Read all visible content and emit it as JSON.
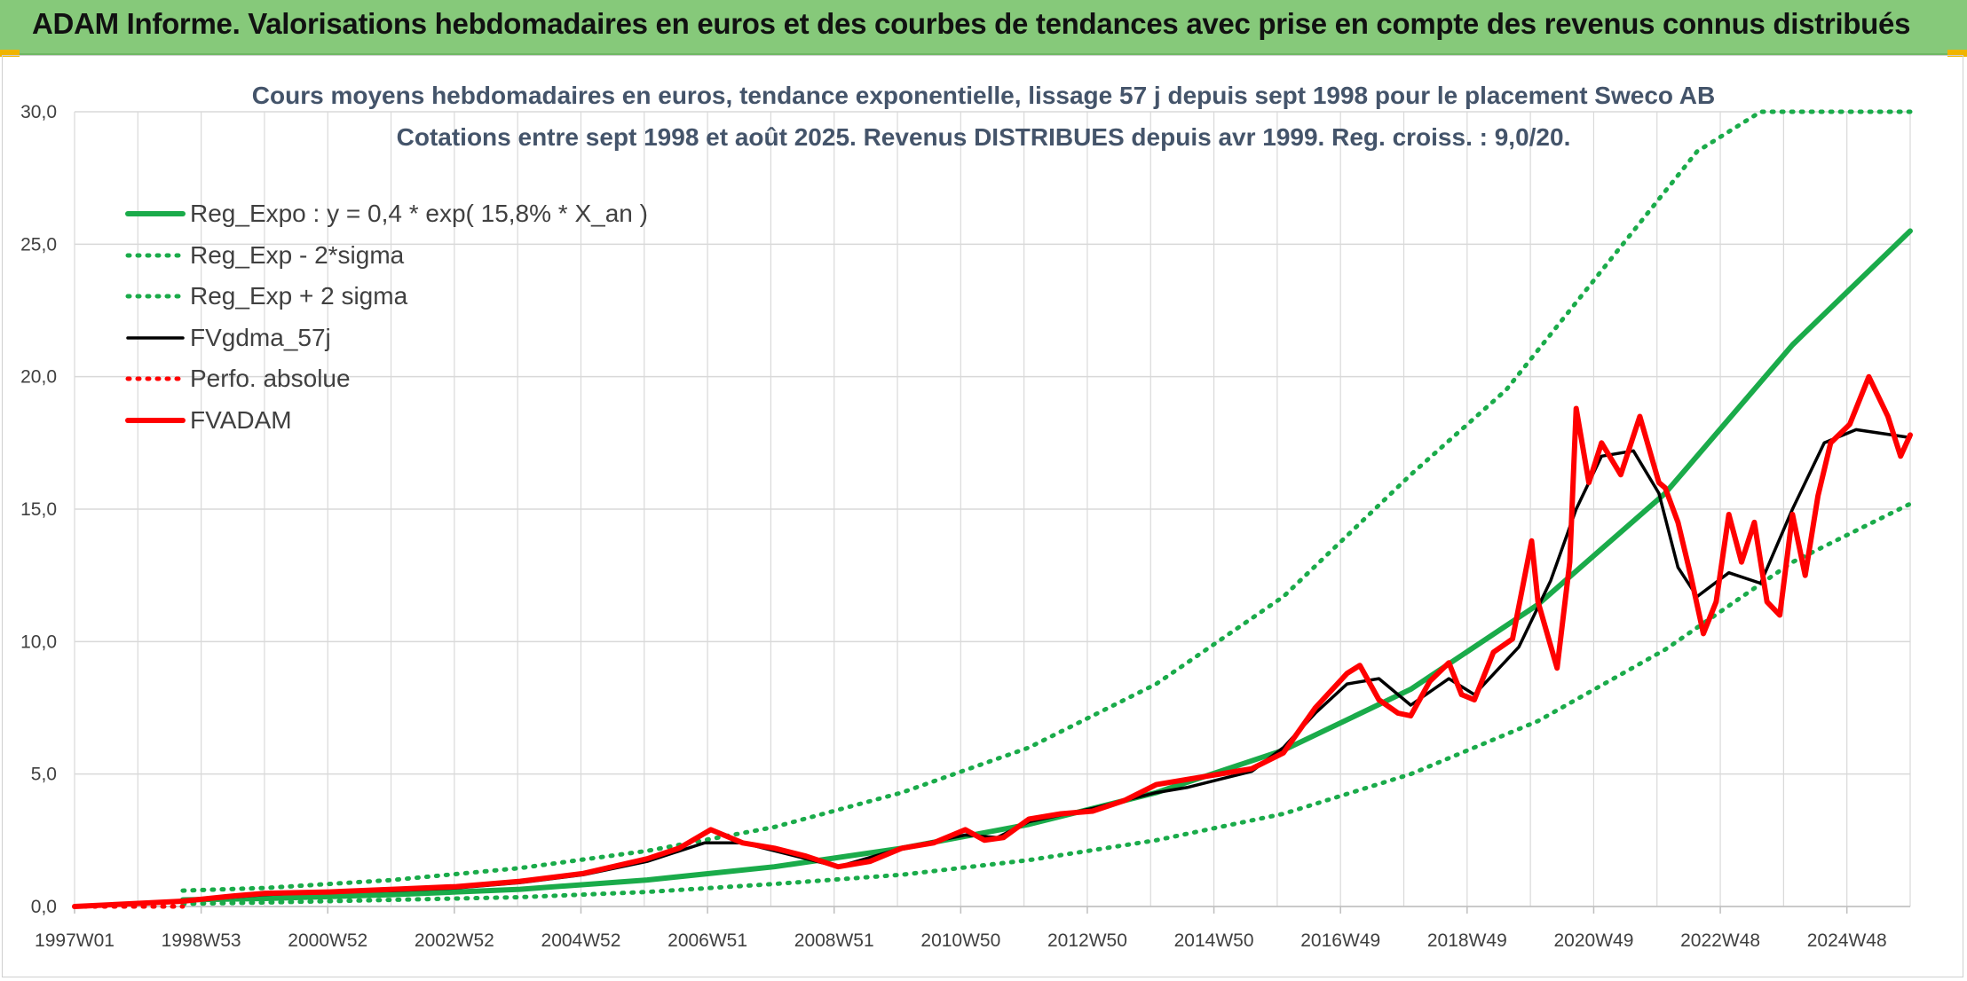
{
  "header": {
    "title": "ADAM Informe. Valorisations hebdomadaires en euros et des courbes de tendances avec prise en compte des revenus connus distribués"
  },
  "colors": {
    "header_bg": "#86c97a",
    "green": "#1aab4a",
    "green_dotted": "#1aab4a",
    "black": "#000000",
    "red": "#ff0000",
    "grid": "#d9d9d9"
  },
  "chart_data": {
    "type": "line",
    "title": "Cours moyens hebdomadaires en euros, tendance exponentielle, lissage 57 j depuis sept 1998 pour le placement Sweco AB",
    "subtitle": "Cotations entre sept 1998 et août 2025. Revenus DISTRIBUES depuis avr 1999. Reg. croiss. : 9,0/20.",
    "x_tick_labels": [
      "1997W01",
      "1998W53",
      "2000W52",
      "2002W52",
      "2004W52",
      "2006W51",
      "2008W51",
      "2010W50",
      "2012W50",
      "2014W50",
      "2016W49",
      "2018W49",
      "2020W49",
      "2022W48",
      "2024W48"
    ],
    "y_tick_labels": [
      "0,0",
      "5,0",
      "10,0",
      "15,0",
      "20,0",
      "25,0",
      "30,0"
    ],
    "ylim": [
      0,
      30
    ],
    "xlim": [
      1997.0,
      2025.85
    ],
    "grid": true,
    "legend_position": "top-left",
    "series": [
      {
        "name": "Reg_Expo : y = 0,4 * exp( 15,8% *  X_an )",
        "style": "solid-thick",
        "color": "#1aab4a",
        "x": [
          1998.7,
          2000,
          2002,
          2004,
          2006,
          2008,
          2010,
          2012,
          2014,
          2016,
          2018,
          2020,
          2022,
          2024,
          2025.85
        ],
        "y": [
          0.25,
          0.3,
          0.45,
          0.65,
          1.0,
          1.5,
          2.2,
          3.1,
          4.3,
          5.9,
          8.2,
          11.4,
          15.6,
          21.2,
          25.5
        ]
      },
      {
        "name": "Reg_Exp - 2*sigma",
        "style": "dotted",
        "color": "#1aab4a",
        "x": [
          1998.7,
          2000,
          2002,
          2004,
          2006,
          2008,
          2010,
          2012,
          2014,
          2016,
          2018,
          2020,
          2022,
          2024,
          2025.85
        ],
        "y": [
          0.1,
          0.15,
          0.25,
          0.35,
          0.55,
          0.85,
          1.2,
          1.75,
          2.5,
          3.5,
          5.0,
          7.0,
          9.7,
          13.0,
          15.2
        ]
      },
      {
        "name": "Reg_Exp + 2 sigma",
        "style": "dotted",
        "color": "#1aab4a",
        "x": [
          1998.7,
          2000,
          2002,
          2004,
          2006,
          2008,
          2010,
          2012,
          2014,
          2016,
          2018,
          2019.5,
          2021,
          2022.5,
          2023.5,
          2024.5,
          2025.85
        ],
        "y": [
          0.6,
          0.7,
          1.0,
          1.45,
          2.1,
          3.0,
          4.3,
          6.0,
          8.4,
          11.7,
          16.3,
          19.5,
          24.0,
          28.5,
          30.0,
          30.0,
          30.0
        ]
      },
      {
        "name": "FVgdma_57j",
        "style": "solid",
        "color": "#000000",
        "x": [
          1997.0,
          1998.7,
          2000,
          2001,
          2002,
          2003,
          2004,
          2005,
          2006,
          2006.9,
          2007.5,
          2008.5,
          2009,
          2010,
          2011,
          2011.5,
          2012,
          2013,
          2014,
          2014.5,
          2015,
          2015.5,
          2016,
          2016.5,
          2017,
          2017.5,
          2018,
          2018.6,
          2019,
          2019.7,
          2020.2,
          2020.6,
          2021,
          2021.5,
          2021.9,
          2022.2,
          2022.5,
          2023,
          2023.5,
          2024,
          2024.5,
          2025,
          2025.85
        ],
        "y": [
          0,
          0.2,
          0.45,
          0.55,
          0.6,
          0.7,
          0.9,
          1.2,
          1.7,
          2.4,
          2.4,
          1.8,
          1.5,
          2.2,
          2.7,
          2.6,
          3.2,
          3.7,
          4.3,
          4.5,
          4.8,
          5.1,
          6.0,
          7.3,
          8.4,
          8.6,
          7.6,
          8.6,
          8.0,
          9.8,
          12.3,
          15.0,
          17.0,
          17.2,
          15.6,
          12.8,
          11.7,
          12.6,
          12.2,
          15.0,
          17.5,
          18.0,
          17.7
        ]
      },
      {
        "name": "Perfo. absolue",
        "style": "dotted",
        "color": "#ff0000",
        "x": [
          1997.0,
          1998.7
        ],
        "y": [
          0,
          0
        ]
      },
      {
        "name": "FVADAM",
        "style": "solid-thick",
        "color": "#ff0000",
        "x": [
          1997.0,
          1998.7,
          1999.5,
          2000,
          2001,
          2002,
          2003,
          2004,
          2005,
          2006,
          2006.5,
          2007,
          2007.5,
          2008,
          2008.5,
          2009,
          2009.5,
          2010,
          2010.5,
          2011,
          2011.3,
          2011.6,
          2012,
          2012.5,
          2013,
          2013.5,
          2014,
          2014.5,
          2015,
          2015.5,
          2016,
          2016.5,
          2017,
          2017.2,
          2017.5,
          2017.8,
          2018,
          2018.3,
          2018.6,
          2018.8,
          2019,
          2019.3,
          2019.6,
          2019.9,
          2020.0,
          2020.3,
          2020.5,
          2020.6,
          2020.8,
          2021,
          2021.3,
          2021.6,
          2021.9,
          2022.0,
          2022.2,
          2022.4,
          2022.6,
          2022.8,
          2023.0,
          2023.2,
          2023.4,
          2023.6,
          2023.8,
          2024.0,
          2024.2,
          2024.4,
          2024.6,
          2024.9,
          2025.2,
          2025.5,
          2025.7,
          2025.85
        ],
        "y": [
          0,
          0.2,
          0.4,
          0.5,
          0.55,
          0.65,
          0.75,
          0.95,
          1.25,
          1.8,
          2.2,
          2.9,
          2.4,
          2.2,
          1.9,
          1.5,
          1.7,
          2.2,
          2.4,
          2.9,
          2.5,
          2.6,
          3.3,
          3.5,
          3.6,
          4.0,
          4.6,
          4.8,
          5.0,
          5.2,
          5.8,
          7.5,
          8.8,
          9.1,
          7.8,
          7.3,
          7.2,
          8.5,
          9.2,
          8.0,
          7.8,
          9.6,
          10.1,
          13.8,
          11.5,
          9.0,
          13.0,
          18.8,
          16.0,
          17.5,
          16.3,
          18.5,
          16.0,
          15.8,
          14.5,
          12.5,
          10.3,
          11.5,
          14.8,
          13.0,
          14.5,
          11.5,
          11.0,
          14.8,
          12.5,
          15.5,
          17.5,
          18.2,
          20.0,
          18.5,
          17.0,
          17.8
        ]
      }
    ]
  }
}
